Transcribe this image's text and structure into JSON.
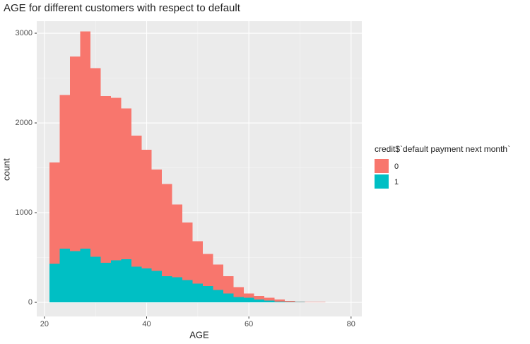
{
  "chart_data": {
    "type": "histogram",
    "title": "AGE for different customers with respect to default",
    "x_label": "AGE",
    "y_label": "count",
    "legend_title": "credit$`default payment next month`",
    "bins": [
      21,
      23,
      25,
      27,
      29,
      31,
      33,
      35,
      37,
      39,
      41,
      43,
      45,
      47,
      49,
      51,
      53,
      55,
      57,
      59,
      61,
      63,
      65,
      67,
      69,
      71,
      73,
      75,
      77,
      79
    ],
    "series": [
      {
        "name": "0",
        "color": "#F8766D",
        "values": [
          1130,
          1710,
          2170,
          2420,
          2100,
          1860,
          1810,
          1680,
          1460,
          1320,
          1130,
          1030,
          810,
          640,
          470,
          360,
          280,
          190,
          110,
          50,
          40,
          30,
          20,
          9,
          7,
          3,
          2,
          0,
          1
        ]
      },
      {
        "name": "1",
        "color": "#00BFC4",
        "values": [
          430,
          600,
          570,
          600,
          510,
          440,
          470,
          480,
          400,
          380,
          350,
          290,
          280,
          250,
          210,
          180,
          140,
          100,
          60,
          50,
          30,
          20,
          10,
          6,
          3,
          2,
          1,
          0,
          1
        ]
      }
    ],
    "stacked": true,
    "xlim": [
      18.5,
      82.1
    ],
    "xticks": [
      20,
      40,
      60,
      80
    ],
    "ylim": [
      -157,
      3134
    ],
    "yticks": [
      0,
      1000,
      2000,
      3000
    ],
    "grid": true,
    "legend_position": "right"
  }
}
